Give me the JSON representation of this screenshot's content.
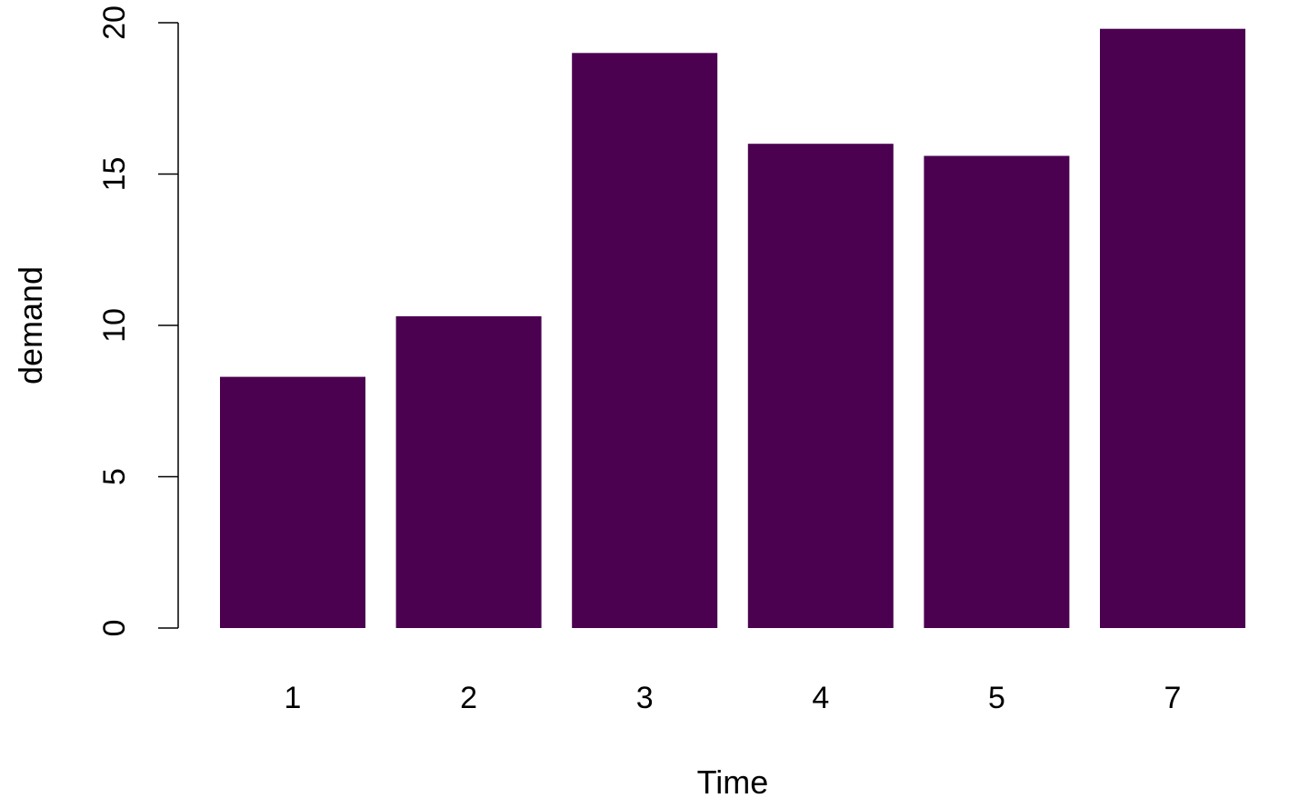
{
  "chart_data": {
    "type": "bar",
    "categories": [
      "1",
      "2",
      "3",
      "4",
      "5",
      "7"
    ],
    "values": [
      8.3,
      10.3,
      19.0,
      16.0,
      15.6,
      19.8
    ],
    "xlabel": "Time",
    "ylabel": "demand",
    "ylim": [
      0,
      20
    ],
    "yticks": [
      0,
      5,
      10,
      15,
      20
    ],
    "bar_color": "#4b0050",
    "grid": false,
    "legend": "none"
  }
}
